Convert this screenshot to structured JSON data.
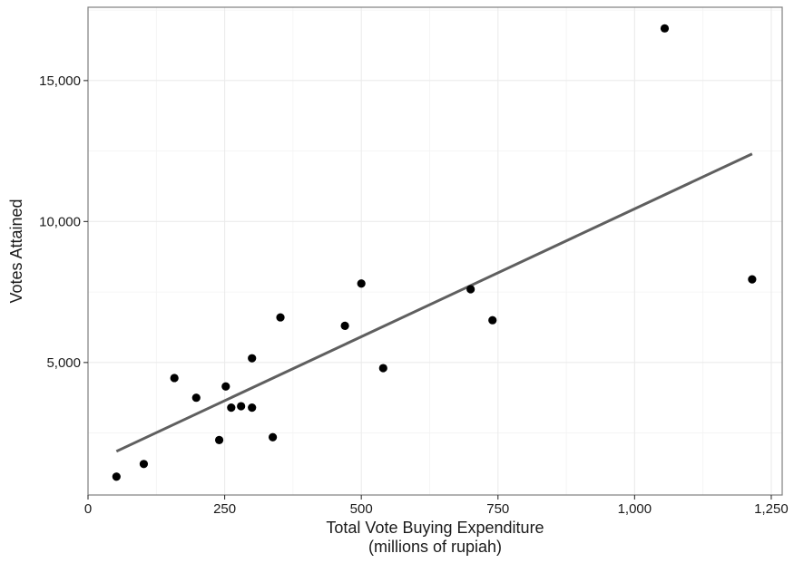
{
  "chart_data": {
    "type": "scatter",
    "title": "",
    "xlabel": "Total Vote Buying Expenditure",
    "xlabel_sub": "(millions of rupiah)",
    "ylabel": "Votes Attained",
    "xlim": [
      0,
      1270
    ],
    "ylim": [
      300,
      17600
    ],
    "x_ticks": [
      0,
      250,
      500,
      750,
      1000,
      1250
    ],
    "x_tick_labels": [
      "0",
      "250",
      "500",
      "750",
      "1,000",
      "1,250"
    ],
    "y_ticks": [
      5000,
      10000,
      15000
    ],
    "y_tick_labels": [
      "5,000",
      "10,000",
      "15,000"
    ],
    "grid": true,
    "points": [
      {
        "x": 52,
        "y": 950
      },
      {
        "x": 102,
        "y": 1400
      },
      {
        "x": 158,
        "y": 4450
      },
      {
        "x": 198,
        "y": 3750
      },
      {
        "x": 240,
        "y": 2250
      },
      {
        "x": 252,
        "y": 4150
      },
      {
        "x": 262,
        "y": 3400
      },
      {
        "x": 280,
        "y": 3450
      },
      {
        "x": 300,
        "y": 5150
      },
      {
        "x": 300,
        "y": 3400
      },
      {
        "x": 338,
        "y": 2350
      },
      {
        "x": 352,
        "y": 6600
      },
      {
        "x": 470,
        "y": 6300
      },
      {
        "x": 500,
        "y": 7800
      },
      {
        "x": 540,
        "y": 4800
      },
      {
        "x": 700,
        "y": 7600
      },
      {
        "x": 740,
        "y": 6500
      },
      {
        "x": 1055,
        "y": 16850
      },
      {
        "x": 1215,
        "y": 7950
      }
    ],
    "fit_line": {
      "x": [
        52,
        1215
      ],
      "y": [
        1850,
        12400
      ]
    },
    "colors": {
      "point": "#000000",
      "fit_line": "#5f5f5f",
      "grid": "#ebebeb",
      "panel_border": "#7f7f7f"
    }
  }
}
